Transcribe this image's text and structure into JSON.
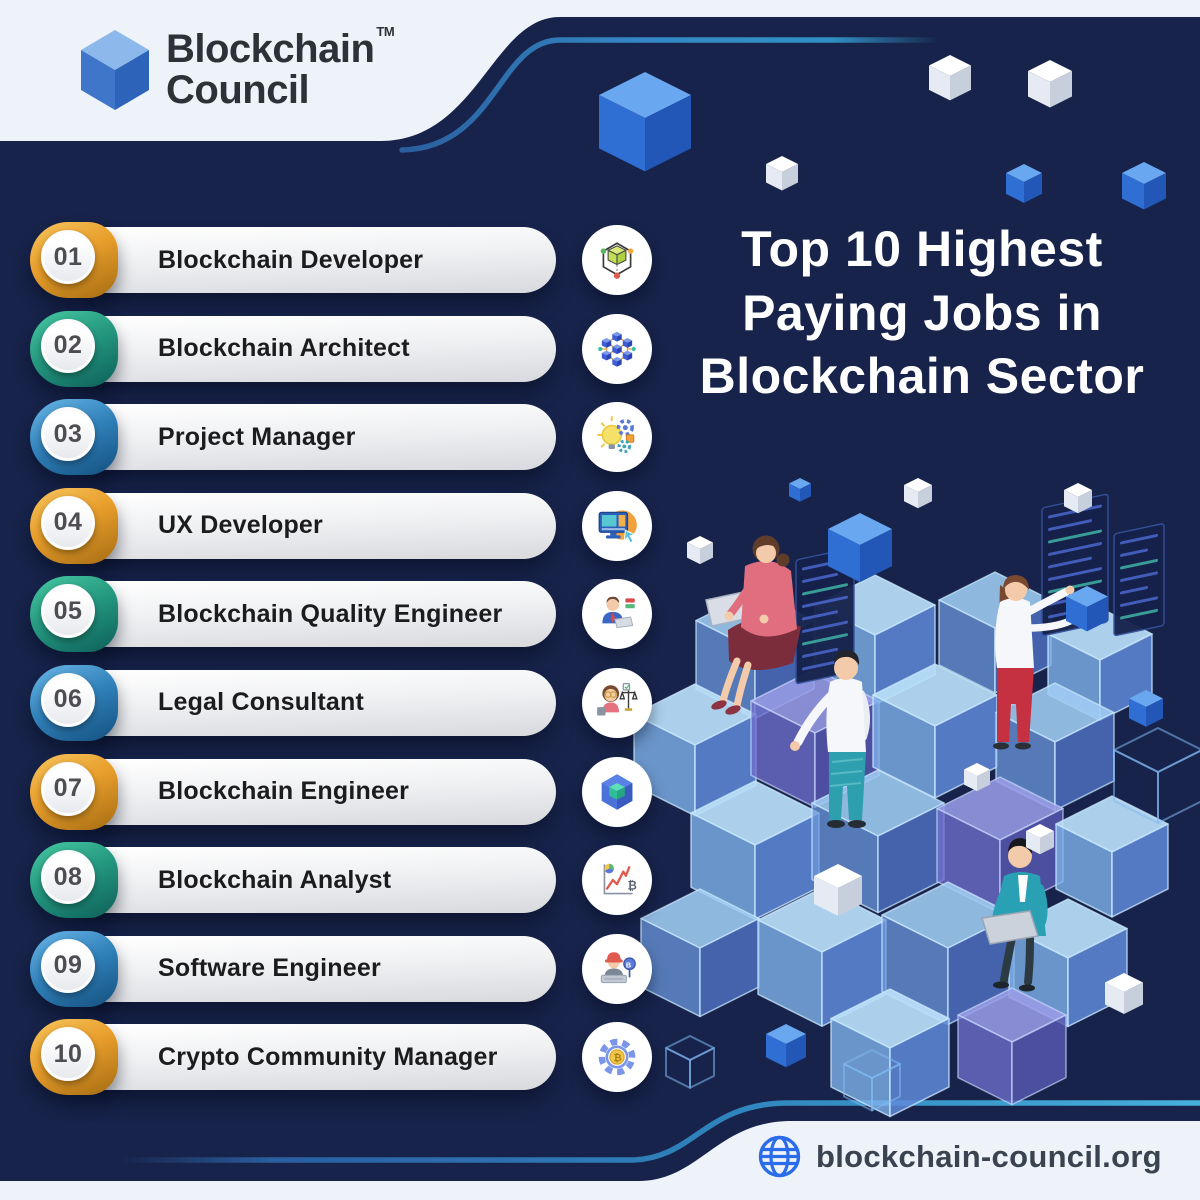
{
  "brand": {
    "name_line1": "Blockchain",
    "name_line2": "Council",
    "trademark": "TM",
    "logo_icon": "blue-cube-logo"
  },
  "title": {
    "lines": [
      "Top 10 Highest",
      "Paying Jobs in",
      "Blockchain Sector"
    ]
  },
  "jobs": [
    {
      "number": "01",
      "label": "Blockchain Developer",
      "icon": "blockchain-developer-icon",
      "accent": "gold"
    },
    {
      "number": "02",
      "label": "Blockchain Architect",
      "icon": "blockchain-architect-icon",
      "accent": "teal"
    },
    {
      "number": "03",
      "label": "Project Manager",
      "icon": "project-manager-icon",
      "accent": "blue"
    },
    {
      "number": "04",
      "label": "UX Developer",
      "icon": "ux-developer-icon",
      "accent": "gold"
    },
    {
      "number": "05",
      "label": "Blockchain Quality Engineer",
      "icon": "quality-engineer-icon",
      "accent": "teal"
    },
    {
      "number": "06",
      "label": "Legal Consultant",
      "icon": "legal-consultant-icon",
      "accent": "blue"
    },
    {
      "number": "07",
      "label": "Blockchain Engineer",
      "icon": "blockchain-engineer-icon",
      "accent": "gold"
    },
    {
      "number": "08",
      "label": "Blockchain Analyst",
      "icon": "blockchain-analyst-icon",
      "accent": "teal"
    },
    {
      "number": "09",
      "label": "Software Engineer",
      "icon": "software-engineer-icon",
      "accent": "blue"
    },
    {
      "number": "10",
      "label": "Crypto Community Manager",
      "icon": "crypto-community-manager-icon",
      "accent": "gold"
    }
  ],
  "footer": {
    "website": "blockchain-council.org",
    "icon": "globe-icon"
  },
  "colors": {
    "background": "#17234a",
    "light_band": "#eef3f9",
    "accent_gold": "#e89e2b",
    "accent_teal": "#23957e",
    "accent_blue": "#2f7fb8",
    "accent_line_blue": "#3489c4",
    "title_text": "#ffffff",
    "pill_text": "#1c1c1e"
  }
}
